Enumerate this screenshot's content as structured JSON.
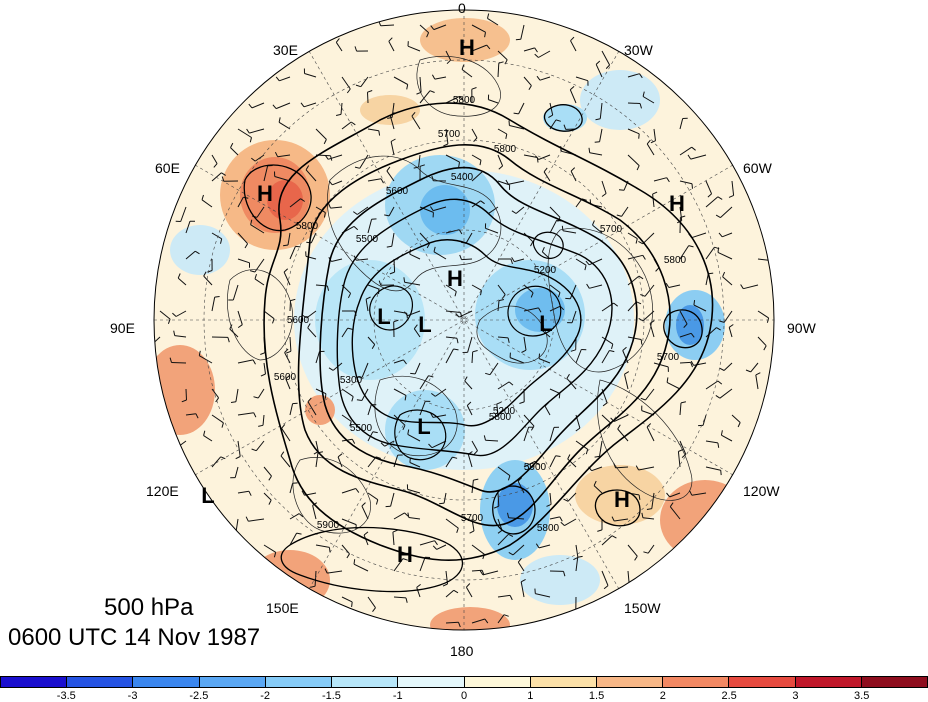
{
  "title": {
    "level": "500 hPa",
    "time": "0600 UTC 14 Nov 1987"
  },
  "longitude_labels": [
    "0",
    "30W",
    "60W",
    "90W",
    "120W",
    "150W",
    "180",
    "150E",
    "120E",
    "90E",
    "60E",
    "30E"
  ],
  "pressure_centers": [
    {
      "type": "H",
      "lon": "0 (top)"
    },
    {
      "type": "H",
      "lon": "near 60E"
    },
    {
      "type": "H",
      "lon": "near 60W"
    },
    {
      "type": "H",
      "lon": "central arctic"
    },
    {
      "type": "L",
      "lon": "near 90E inner ring"
    },
    {
      "type": "L",
      "lon": "central near 90E"
    },
    {
      "type": "L",
      "lon": "near 90W inner"
    },
    {
      "type": "L",
      "lon": "near 150E inner"
    },
    {
      "type": "H",
      "lon": "near 120W"
    },
    {
      "type": "H",
      "lon": "near 180 outer"
    },
    {
      "type": "L",
      "lon": "near 120E edge"
    }
  ],
  "contour_labels": [
    "5800",
    "5700",
    "5800",
    "5400",
    "5600",
    "5500",
    "5800",
    "5700",
    "5200",
    "5600",
    "5800",
    "5700",
    "5300",
    "5600",
    "5800",
    "5900",
    "5500",
    "5200",
    "5700",
    "5800",
    "5900"
  ],
  "colorbar": {
    "ticks": [
      "-3.5",
      "-3",
      "-2.5",
      "-2",
      "-1.5",
      "-1",
      "0",
      "1",
      "1.5",
      "2",
      "2.5",
      "3",
      "3.5"
    ],
    "colors": [
      "#1a0fcf",
      "#2553e3",
      "#3a86ee",
      "#5aa7f3",
      "#86cbf7",
      "#b7e6f9",
      "#e4f7fb",
      "#fdf7d9",
      "#fbe0a8",
      "#f7b787",
      "#f28863",
      "#e64a3f",
      "#c0172a",
      "#8e0d1e"
    ]
  }
}
